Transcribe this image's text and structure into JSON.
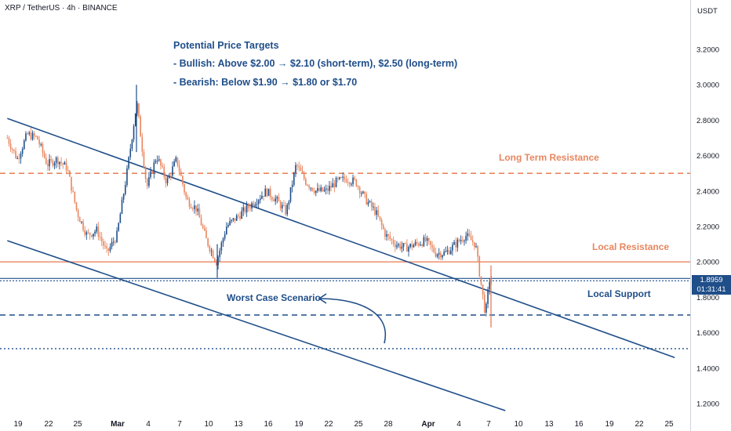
{
  "header": {
    "ticker": "XRP / TetherUS · 4h · BINANCE"
  },
  "axis": {
    "currency": "USDT"
  },
  "price_badge": {
    "price": "1.8959",
    "countdown": "01:31:41"
  },
  "annotations": {
    "targets_title": "Potential Price Targets",
    "bullish": "- Bullish: Above $2.00 → $2.10 (short-term), $2.50 (long-term)",
    "bearish": "- Bearish: Below $1.90 → $1.80 or $1.70",
    "long_term_resistance": "Long Term Resistance",
    "local_resistance": "Local Resistance",
    "local_support": "Local Support",
    "worst_case": "Worst Case Scenario"
  },
  "colors": {
    "up": "#1f4e89",
    "down": "#e8865f",
    "line": "#1f4e89",
    "resistance": "#e8865f"
  },
  "chart_data": {
    "type": "candlestick",
    "title": "XRP / TetherUS · 4h · BINANCE",
    "ylabel": "USDT",
    "ylim": [
      1.15,
      3.4
    ],
    "y_ticks": [
      "3.2000",
      "3.0000",
      "2.8000",
      "2.6000",
      "2.4000",
      "2.2000",
      "2.0000",
      "1.8000",
      "1.6000",
      "1.4000",
      "1.2000"
    ],
    "x_ticks": [
      "19",
      "22",
      "25",
      "Mar",
      "4",
      "7",
      "10",
      "13",
      "16",
      "19",
      "22",
      "25",
      "28",
      "Apr",
      "4",
      "7",
      "10",
      "13",
      "16",
      "19",
      "22",
      "25"
    ],
    "last_price": 1.8959,
    "horizontal_levels": [
      {
        "price": 2.5,
        "style": "dashed",
        "color": "#e8865f",
        "label": "Long Term Resistance"
      },
      {
        "price": 2.0,
        "style": "solid",
        "color": "#e8865f",
        "label": "Local Resistance"
      },
      {
        "price": 1.9,
        "style": "double",
        "color": "#1f4e89",
        "label": "Local Support"
      },
      {
        "price": 1.7,
        "style": "dashed",
        "color": "#1f4e89",
        "label": ""
      },
      {
        "price": 1.51,
        "style": "dotted",
        "color": "#1f4e89",
        "label": ""
      }
    ],
    "trendlines": [
      {
        "from": {
          "x": "Feb 18",
          "y": 2.81
        },
        "to": {
          "x": "Apr 26",
          "y": 1.46
        }
      },
      {
        "from": {
          "x": "Feb 18",
          "y": 2.12
        },
        "to": {
          "x": "Apr 9",
          "y": 1.16
        }
      }
    ],
    "price_path": [
      [
        "Feb 18",
        2.7
      ],
      [
        "Feb 19",
        2.58
      ],
      [
        "Feb 20",
        2.72
      ],
      [
        "Feb 21",
        2.7
      ],
      [
        "Feb 22",
        2.55
      ],
      [
        "Feb 23",
        2.58
      ],
      [
        "Feb 24",
        2.53
      ],
      [
        "Feb 25",
        2.28
      ],
      [
        "Feb 26",
        2.15
      ],
      [
        "Feb 27",
        2.18
      ],
      [
        "Feb 28",
        2.05
      ],
      [
        "Mar 1",
        2.15
      ],
      [
        "Mar 2",
        2.5
      ],
      [
        "Mar 3",
        2.9
      ],
      [
        "Mar 4",
        2.42
      ],
      [
        "Mar 5",
        2.6
      ],
      [
        "Mar 6",
        2.45
      ],
      [
        "Mar 7",
        2.58
      ],
      [
        "Mar 8",
        2.35
      ],
      [
        "Mar 9",
        2.3
      ],
      [
        "Mar 10",
        2.12
      ],
      [
        "Mar 11",
        2.0
      ],
      [
        "Mar 12",
        2.2
      ],
      [
        "Mar 13",
        2.25
      ],
      [
        "Mar 14",
        2.3
      ],
      [
        "Mar 15",
        2.35
      ],
      [
        "Mar 16",
        2.4
      ],
      [
        "Mar 17",
        2.35
      ],
      [
        "Mar 18",
        2.28
      ],
      [
        "Mar 19",
        2.55
      ],
      [
        "Mar 20",
        2.45
      ],
      [
        "Mar 21",
        2.4
      ],
      [
        "Mar 22",
        2.4
      ],
      [
        "Mar 23",
        2.45
      ],
      [
        "Mar 24",
        2.47
      ],
      [
        "Mar 25",
        2.45
      ],
      [
        "Mar 26",
        2.35
      ],
      [
        "Mar 27",
        2.28
      ],
      [
        "Mar 28",
        2.15
      ],
      [
        "Mar 29",
        2.1
      ],
      [
        "Mar 30",
        2.08
      ],
      [
        "Mar 31",
        2.1
      ],
      [
        "Apr 1",
        2.12
      ],
      [
        "Apr 2",
        2.05
      ],
      [
        "Apr 3",
        2.05
      ],
      [
        "Apr 4",
        2.1
      ],
      [
        "Apr 5",
        2.15
      ],
      [
        "Apr 6",
        2.1
      ],
      [
        "Apr 7",
        1.7
      ],
      [
        "Apr 7.4",
        1.9
      ],
      [
        "Apr 7.6",
        1.8959
      ]
    ]
  }
}
